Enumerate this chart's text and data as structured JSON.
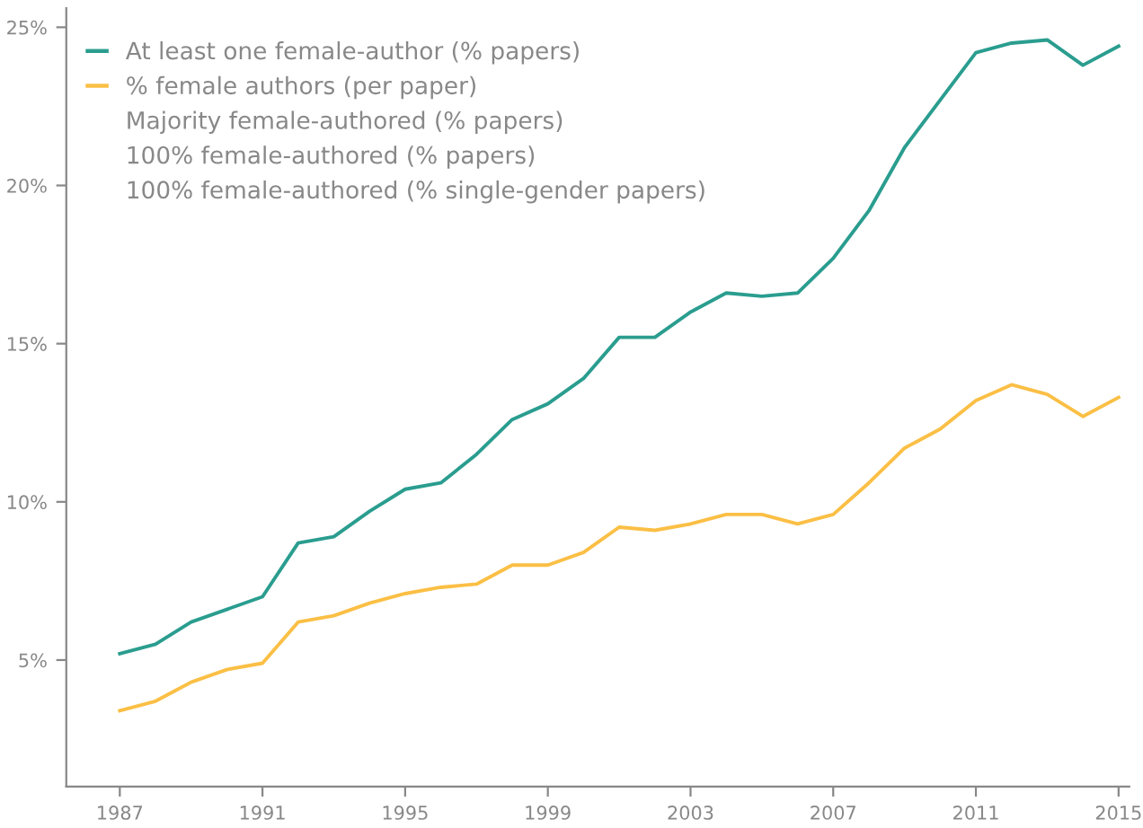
{
  "chart_data": {
    "type": "line",
    "x": [
      1987,
      1988,
      1989,
      1990,
      1991,
      1992,
      1993,
      1994,
      1995,
      1996,
      1997,
      1998,
      1999,
      2000,
      2001,
      2002,
      2003,
      2004,
      2005,
      2006,
      2007,
      2008,
      2009,
      2010,
      2011,
      2012,
      2013,
      2014,
      2015
    ],
    "series": [
      {
        "name": "At least one female-author (% papers)",
        "color": "#2a9d8f",
        "values": [
          5.2,
          5.5,
          6.2,
          6.6,
          7.0,
          8.7,
          8.9,
          9.7,
          10.4,
          10.6,
          11.5,
          12.6,
          13.1,
          13.9,
          15.2,
          15.2,
          16.0,
          16.6,
          16.5,
          16.6,
          17.7,
          19.2,
          21.2,
          22.7,
          24.2,
          24.5,
          24.6,
          23.8,
          24.4
        ]
      },
      {
        "name": "% female authors (per paper)",
        "color": "#fbbf45",
        "values": [
          3.4,
          3.7,
          4.3,
          4.7,
          4.9,
          6.2,
          6.4,
          6.8,
          7.1,
          7.3,
          7.4,
          8.0,
          8.0,
          8.4,
          9.2,
          9.1,
          9.3,
          9.6,
          9.6,
          9.3,
          9.6,
          10.6,
          11.7,
          12.3,
          13.2,
          13.7,
          13.4,
          12.7,
          13.3
        ]
      },
      {
        "name": "Majority female-authored (% papers)",
        "color": null,
        "values": [
          null,
          null,
          null,
          null,
          null,
          null,
          null,
          null,
          null,
          null,
          null,
          null,
          null,
          null,
          null,
          null,
          null,
          null,
          null,
          null,
          null,
          null,
          null,
          null,
          null,
          null,
          null,
          null,
          null
        ]
      },
      {
        "name": "100% female-authored (% papers)",
        "color": null,
        "values": [
          null,
          null,
          null,
          null,
          null,
          null,
          null,
          null,
          null,
          null,
          null,
          null,
          null,
          null,
          null,
          null,
          null,
          null,
          null,
          null,
          null,
          null,
          null,
          null,
          null,
          null,
          null,
          null,
          null
        ]
      },
      {
        "name": "100% female-authored (% single-gender papers)",
        "color": null,
        "values": [
          null,
          null,
          null,
          null,
          null,
          null,
          null,
          null,
          null,
          null,
          null,
          null,
          null,
          null,
          null,
          null,
          null,
          null,
          null,
          null,
          null,
          null,
          null,
          null,
          null,
          null,
          null,
          null,
          null
        ]
      }
    ],
    "xlim": [
      1985.5,
      2015.3
    ],
    "xticks": [
      1987,
      1991,
      1995,
      1999,
      2003,
      2007,
      2011,
      2015
    ],
    "ylim": [
      1,
      25.6
    ],
    "yticks": [
      {
        "value": 5,
        "label": "5%"
      },
      {
        "value": 10,
        "label": "10%"
      },
      {
        "value": 15,
        "label": "15%"
      },
      {
        "value": 20,
        "label": "20%"
      },
      {
        "value": 25,
        "label": "25%"
      }
    ],
    "grid": false,
    "legend": "top left"
  }
}
